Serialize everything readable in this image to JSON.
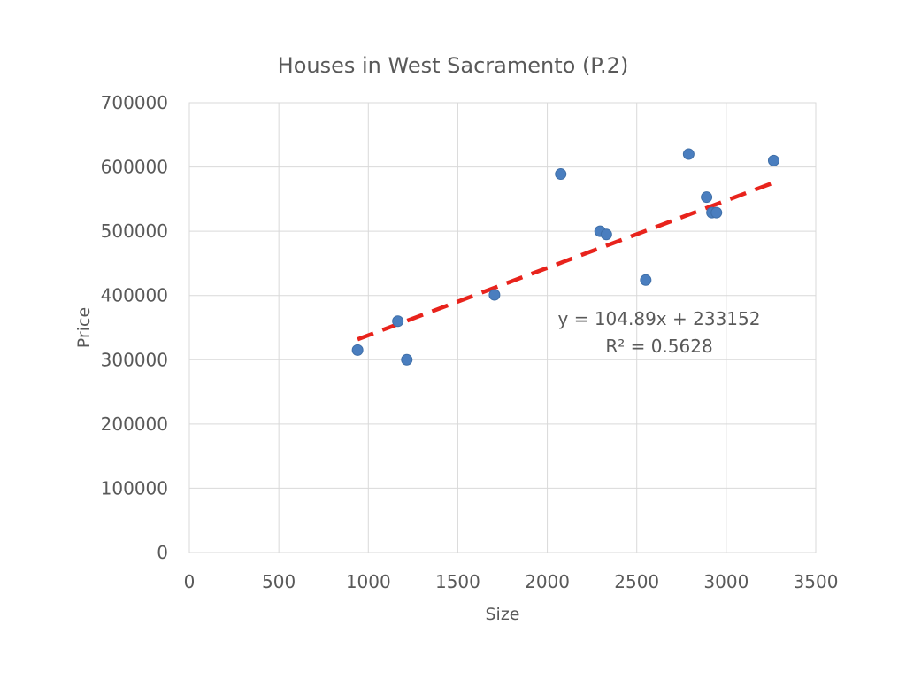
{
  "chart_data": {
    "type": "scatter",
    "title": "Houses in West Sacramento (P.2)",
    "xlabel": "Size",
    "ylabel": "Price",
    "xlim": [
      0,
      3500
    ],
    "ylim": [
      0,
      700000
    ],
    "xticks": [
      "0",
      "500",
      "1000",
      "1500",
      "2000",
      "2500",
      "3000",
      "3500"
    ],
    "yticks": [
      "0",
      "100000",
      "200000",
      "300000",
      "400000",
      "500000",
      "600000",
      "700000"
    ],
    "grid": true,
    "legend": "none",
    "series": [
      {
        "color": "#4a7ebf",
        "points": [
          {
            "x": 940,
            "y": 315000
          },
          {
            "x": 1165,
            "y": 360000
          },
          {
            "x": 1215,
            "y": 300000
          },
          {
            "x": 1705,
            "y": 401000
          },
          {
            "x": 2075,
            "y": 589000
          },
          {
            "x": 2295,
            "y": 500000
          },
          {
            "x": 2330,
            "y": 495000
          },
          {
            "x": 2550,
            "y": 424000
          },
          {
            "x": 2790,
            "y": 620000
          },
          {
            "x": 2890,
            "y": 553000
          },
          {
            "x": 2920,
            "y": 529000
          },
          {
            "x": 2945,
            "y": 529000
          },
          {
            "x": 3265,
            "y": 610000
          }
        ]
      }
    ],
    "trendline": {
      "type": "linear",
      "slope": 104.89,
      "intercept": 233152,
      "x_start": 940,
      "x_end": 3265,
      "color": "#e8231c",
      "equation": "y = 104.89x + 233152",
      "r_squared": "R² = 0.5628"
    }
  }
}
